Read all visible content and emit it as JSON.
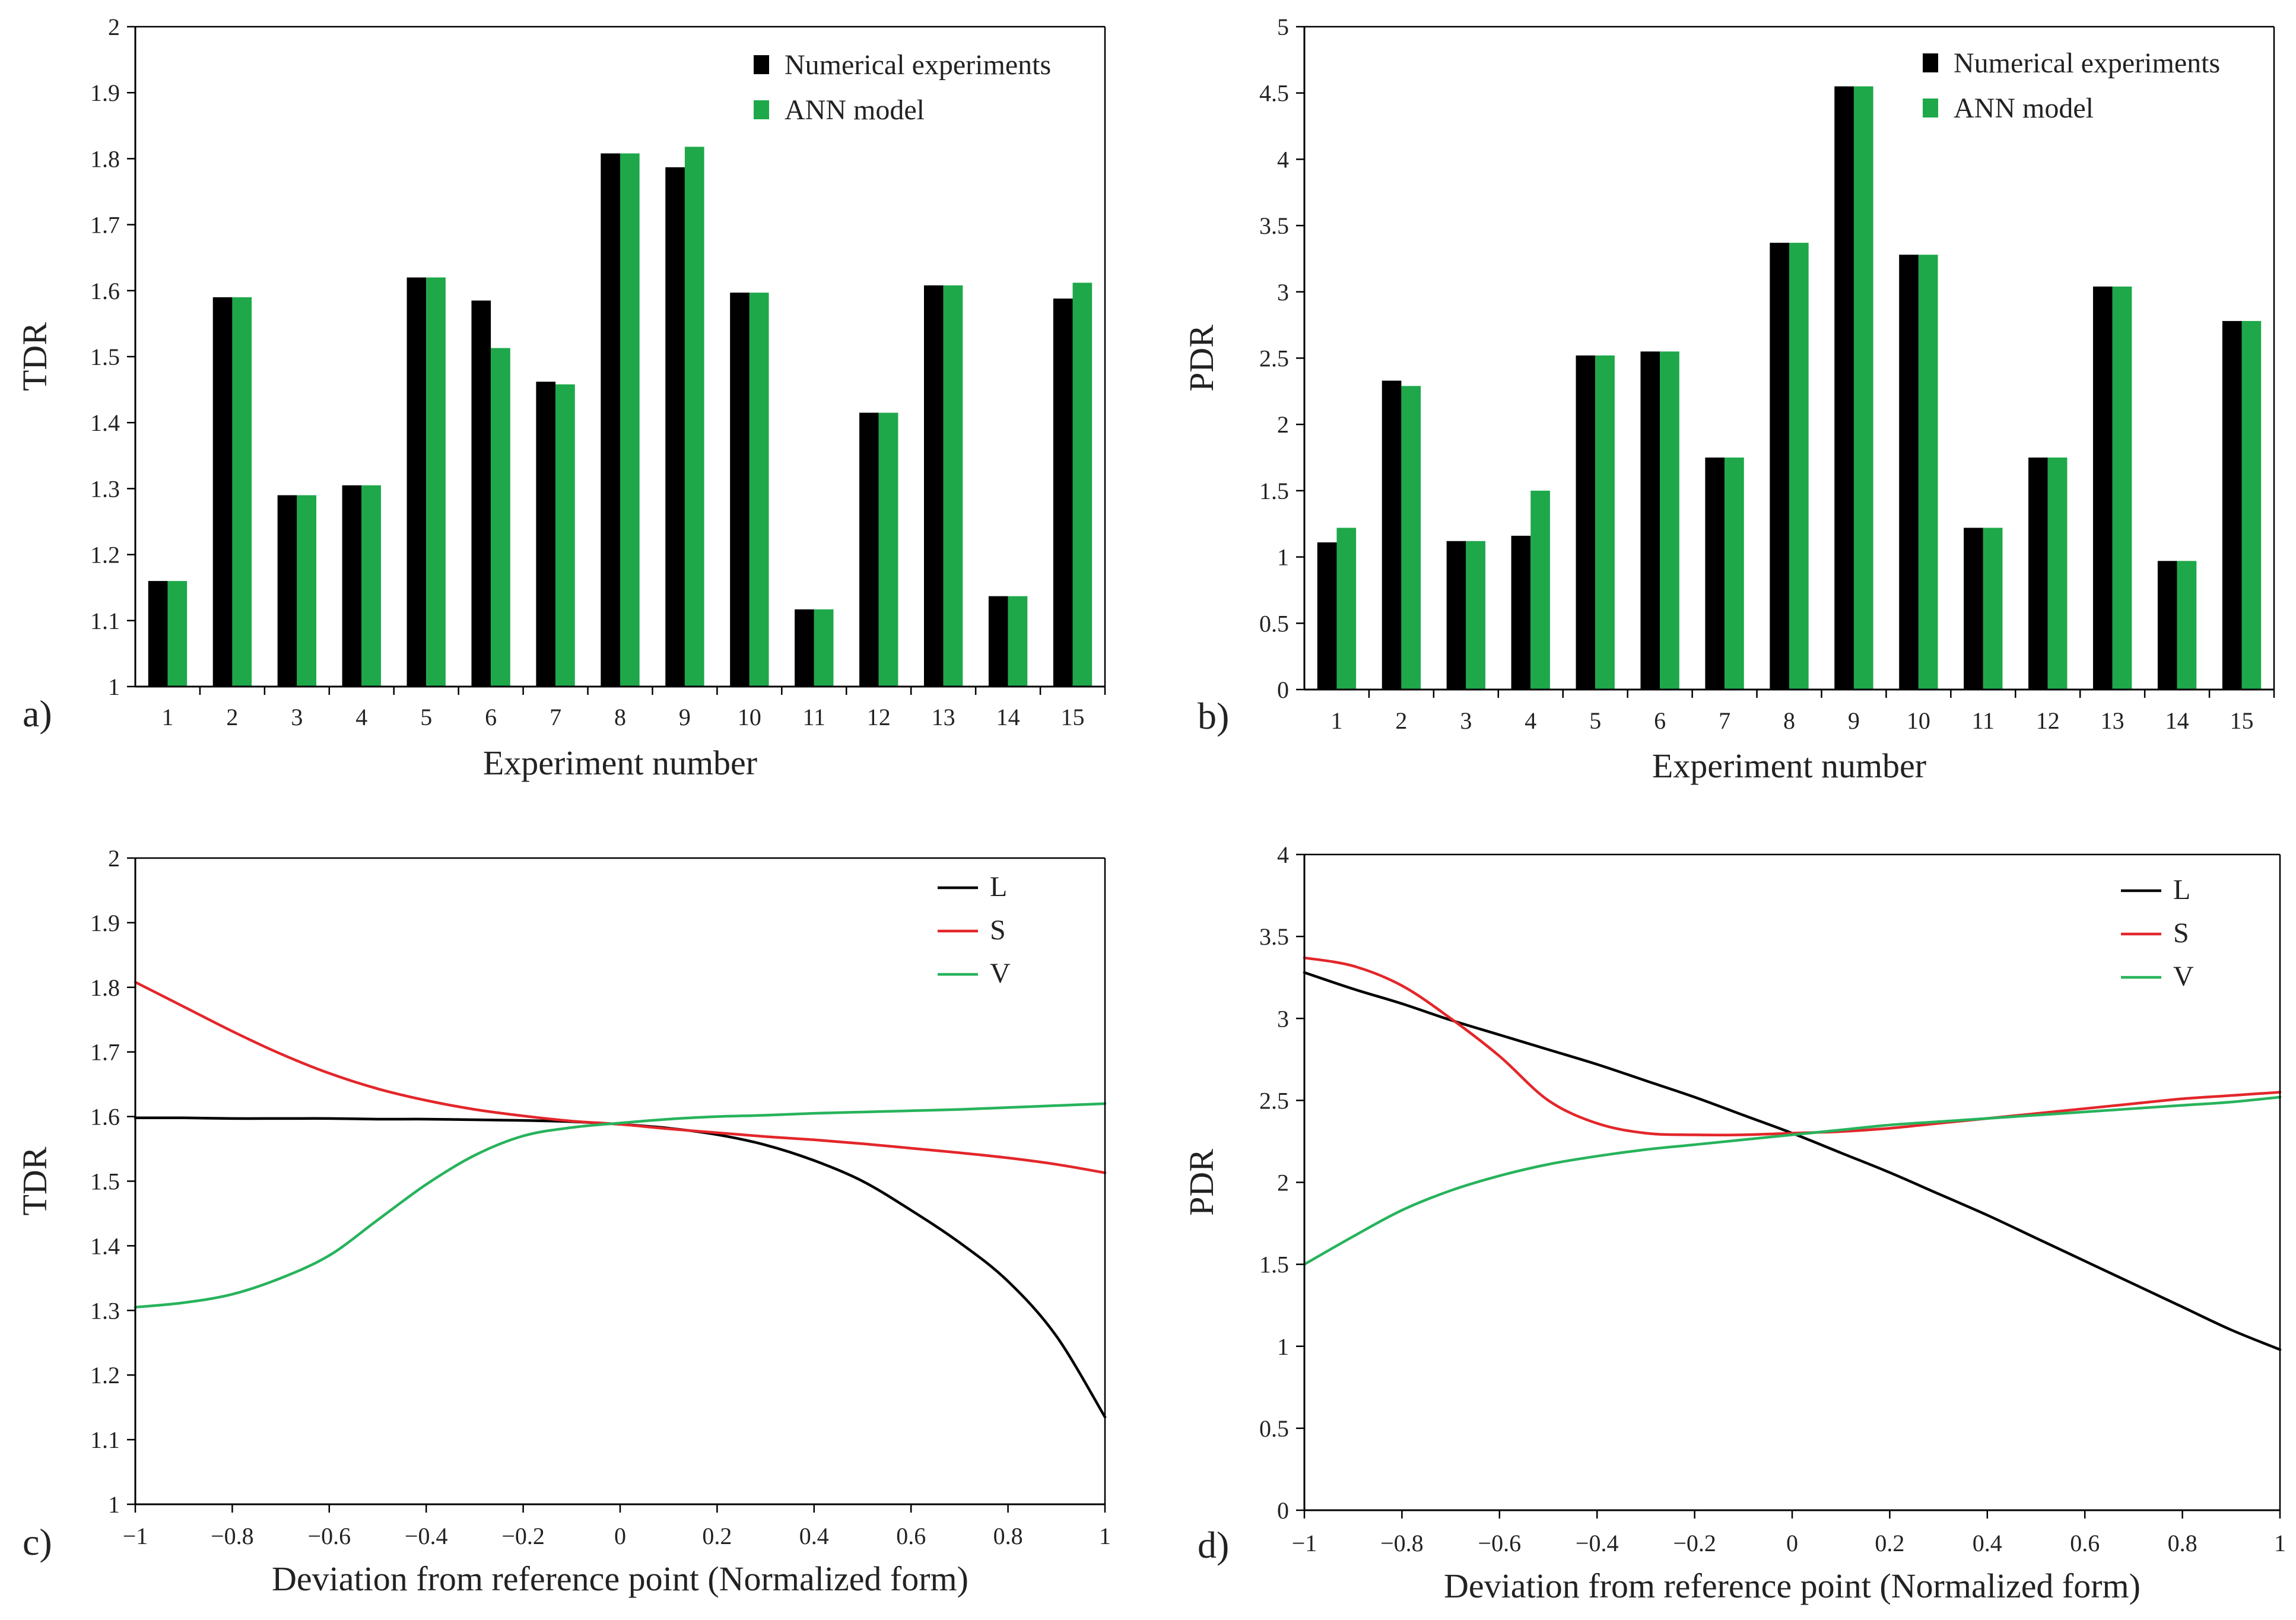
{
  "colors": {
    "numerical": "#000000",
    "ann": "#1ea84a",
    "L": "#000000",
    "S": "#e3262a",
    "V": "#27b35c",
    "axis": "#000000"
  },
  "chart_data": [
    {
      "id": "a",
      "type": "bar",
      "panel_label": "a)",
      "xlabel": "Experiment number",
      "ylabel": "TDR",
      "ylim": [
        1,
        2
      ],
      "yticks": [
        "1",
        "1.1",
        "1.2",
        "1.3",
        "1.4",
        "1.5",
        "1.6",
        "1.7",
        "1.8",
        "1.9",
        "2"
      ],
      "categories": [
        "1",
        "2",
        "3",
        "4",
        "5",
        "6",
        "7",
        "8",
        "9",
        "10",
        "11",
        "12",
        "13",
        "14",
        "15"
      ],
      "legend_position": "top-right",
      "series": [
        {
          "name": "Numerical experiments",
          "color_key": "numerical",
          "values": [
            1.16,
            1.59,
            1.29,
            1.305,
            1.62,
            1.585,
            1.462,
            1.808,
            1.787,
            1.597,
            1.117,
            1.415,
            1.608,
            1.137,
            1.588
          ]
        },
        {
          "name": "ANN model",
          "color_key": "ann",
          "values": [
            1.16,
            1.59,
            1.29,
            1.305,
            1.62,
            1.513,
            1.458,
            1.808,
            1.818,
            1.597,
            1.117,
            1.415,
            1.608,
            1.137,
            1.612
          ]
        }
      ]
    },
    {
      "id": "b",
      "type": "bar",
      "panel_label": "b)",
      "xlabel": "Experiment number",
      "ylabel": "PDR",
      "ylim": [
        0,
        5
      ],
      "yticks": [
        "0",
        "0.5",
        "1",
        "1.5",
        "2",
        "2.5",
        "3",
        "3.5",
        "4",
        "4.5",
        "5"
      ],
      "categories": [
        "1",
        "2",
        "3",
        "4",
        "5",
        "6",
        "7",
        "8",
        "9",
        "10",
        "11",
        "12",
        "13",
        "14",
        "15"
      ],
      "legend_position": "top-right",
      "series": [
        {
          "name": "Numerical experiments",
          "color_key": "numerical",
          "values": [
            1.11,
            2.33,
            1.12,
            1.16,
            2.52,
            2.55,
            1.75,
            3.37,
            4.55,
            3.28,
            1.22,
            1.75,
            3.04,
            0.97,
            2.78
          ]
        },
        {
          "name": "ANN model",
          "color_key": "ann",
          "values": [
            1.22,
            2.29,
            1.12,
            1.5,
            2.52,
            2.55,
            1.75,
            3.37,
            4.55,
            3.28,
            1.22,
            1.75,
            3.04,
            0.97,
            2.78
          ]
        }
      ]
    },
    {
      "id": "c",
      "type": "line",
      "panel_label": "c)",
      "xlabel": "Deviation from reference point  (Normalized form)",
      "ylabel": "TDR",
      "xlim": [
        -1,
        1
      ],
      "ylim": [
        1,
        2
      ],
      "xticks": [
        "−1",
        "−0.8",
        "−0.6",
        "−0.4",
        "−0.2",
        "0",
        "0.2",
        "0.4",
        "0.6",
        "0.8",
        "1"
      ],
      "yticks": [
        "1",
        "1.1",
        "1.2",
        "1.3",
        "1.4",
        "1.5",
        "1.6",
        "1.7",
        "1.8",
        "1.9",
        "2"
      ],
      "legend_position": "top-right",
      "x": [
        -1,
        -0.9,
        -0.8,
        -0.7,
        -0.6,
        -0.5,
        -0.4,
        -0.3,
        -0.2,
        -0.1,
        0,
        0.1,
        0.2,
        0.3,
        0.4,
        0.5,
        0.6,
        0.7,
        0.8,
        0.9,
        1
      ],
      "series": [
        {
          "name": "L",
          "color_key": "L",
          "values": [
            1.598,
            1.598,
            1.597,
            1.597,
            1.597,
            1.596,
            1.596,
            1.595,
            1.594,
            1.592,
            1.588,
            1.582,
            1.572,
            1.556,
            1.532,
            1.5,
            1.455,
            1.405,
            1.345,
            1.26,
            1.135
          ]
        },
        {
          "name": "S",
          "color_key": "S",
          "values": [
            1.808,
            1.77,
            1.732,
            1.697,
            1.667,
            1.643,
            1.625,
            1.611,
            1.601,
            1.593,
            1.588,
            1.581,
            1.575,
            1.569,
            1.564,
            1.558,
            1.551,
            1.544,
            1.536,
            1.526,
            1.513
          ]
        },
        {
          "name": "V",
          "color_key": "V",
          "values": [
            1.305,
            1.312,
            1.325,
            1.35,
            1.385,
            1.44,
            1.495,
            1.54,
            1.57,
            1.583,
            1.59,
            1.596,
            1.6,
            1.602,
            1.605,
            1.607,
            1.609,
            1.611,
            1.614,
            1.617,
            1.62
          ]
        }
      ]
    },
    {
      "id": "d",
      "type": "line",
      "panel_label": "d)",
      "xlabel": "Deviation from reference point  (Normalized form)",
      "ylabel": "PDR",
      "xlim": [
        -1,
        1
      ],
      "ylim": [
        0,
        4
      ],
      "xticks": [
        "−1",
        "−0.8",
        "−0.6",
        "−0.4",
        "−0.2",
        "0",
        "0.2",
        "0.4",
        "0.6",
        "0.8",
        "1"
      ],
      "yticks": [
        "0",
        "0.5",
        "1",
        "1.5",
        "2",
        "2.5",
        "3",
        "3.5",
        "4"
      ],
      "legend_position": "top-right",
      "x": [
        -1,
        -0.9,
        -0.8,
        -0.7,
        -0.6,
        -0.5,
        -0.4,
        -0.3,
        -0.2,
        -0.1,
        0,
        0.1,
        0.2,
        0.3,
        0.4,
        0.5,
        0.6,
        0.7,
        0.8,
        0.9,
        1
      ],
      "series": [
        {
          "name": "L",
          "color_key": "L",
          "values": [
            3.28,
            3.18,
            3.09,
            2.99,
            2.9,
            2.81,
            2.72,
            2.62,
            2.52,
            2.41,
            2.3,
            2.18,
            2.06,
            1.93,
            1.8,
            1.66,
            1.52,
            1.38,
            1.24,
            1.1,
            0.98
          ]
        },
        {
          "name": "S",
          "color_key": "S",
          "values": [
            3.37,
            3.32,
            3.2,
            3.0,
            2.77,
            2.5,
            2.36,
            2.3,
            2.29,
            2.29,
            2.3,
            2.31,
            2.33,
            2.36,
            2.39,
            2.42,
            2.45,
            2.48,
            2.51,
            2.53,
            2.55
          ]
        },
        {
          "name": "V",
          "color_key": "V",
          "values": [
            1.5,
            1.67,
            1.83,
            1.95,
            2.04,
            2.11,
            2.16,
            2.2,
            2.23,
            2.26,
            2.29,
            2.32,
            2.35,
            2.37,
            2.39,
            2.41,
            2.43,
            2.45,
            2.47,
            2.49,
            2.52
          ]
        }
      ]
    }
  ]
}
